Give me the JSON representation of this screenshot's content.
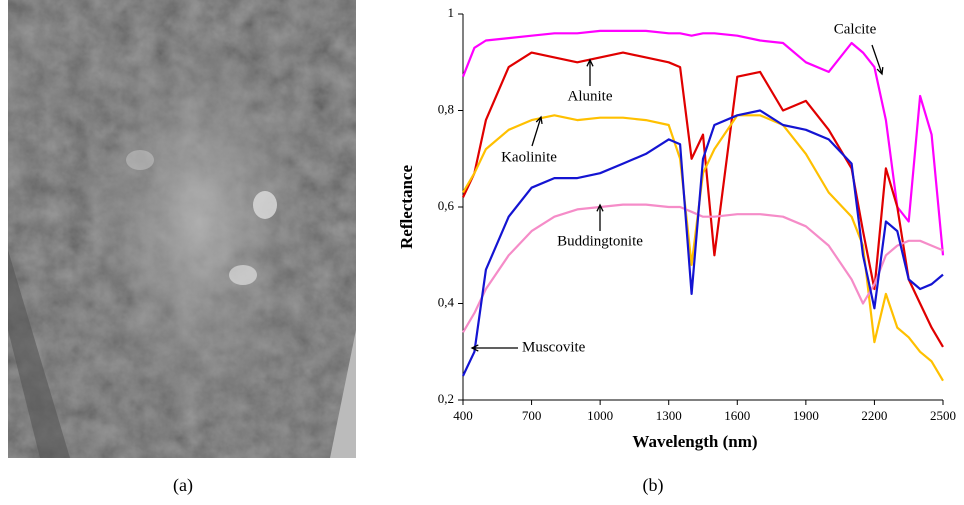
{
  "chart_data": {
    "type": "line",
    "xlabel": "Wavelength (nm)",
    "ylabel": "Reflectance",
    "x": [
      400,
      450,
      500,
      600,
      700,
      800,
      900,
      1000,
      1100,
      1200,
      1300,
      1350,
      1400,
      1450,
      1500,
      1600,
      1700,
      1800,
      1900,
      2000,
      2100,
      2150,
      2200,
      2250,
      2300,
      2350,
      2400,
      2450,
      2500
    ],
    "series": [
      {
        "name": "Calcite",
        "color": "#ff00ff",
        "values": [
          0.87,
          0.93,
          0.945,
          0.95,
          0.955,
          0.96,
          0.96,
          0.965,
          0.965,
          0.965,
          0.96,
          0.96,
          0.955,
          0.96,
          0.96,
          0.955,
          0.945,
          0.94,
          0.9,
          0.88,
          0.94,
          0.92,
          0.89,
          0.78,
          0.6,
          0.57,
          0.83,
          0.75,
          0.5
        ]
      },
      {
        "name": "Alunite",
        "color": "#e00000",
        "values": [
          0.62,
          0.67,
          0.78,
          0.89,
          0.92,
          0.91,
          0.9,
          0.91,
          0.92,
          0.91,
          0.9,
          0.89,
          0.7,
          0.75,
          0.5,
          0.87,
          0.88,
          0.8,
          0.82,
          0.76,
          0.68,
          0.55,
          0.43,
          0.68,
          0.6,
          0.45,
          0.4,
          0.35,
          0.31
        ]
      },
      {
        "name": "Kaolinite",
        "color": "#ffc000",
        "values": [
          0.63,
          0.67,
          0.72,
          0.76,
          0.78,
          0.79,
          0.78,
          0.785,
          0.785,
          0.78,
          0.77,
          0.7,
          0.48,
          0.67,
          0.72,
          0.79,
          0.79,
          0.77,
          0.71,
          0.63,
          0.58,
          0.52,
          0.32,
          0.42,
          0.35,
          0.33,
          0.3,
          0.28,
          0.24
        ]
      },
      {
        "name": "Buddingtonite",
        "color": "#f58cc8",
        "values": [
          0.34,
          0.38,
          0.43,
          0.5,
          0.55,
          0.58,
          0.595,
          0.6,
          0.605,
          0.605,
          0.6,
          0.6,
          0.59,
          0.58,
          0.58,
          0.585,
          0.585,
          0.58,
          0.56,
          0.52,
          0.45,
          0.4,
          0.44,
          0.5,
          0.52,
          0.53,
          0.53,
          0.52,
          0.51
        ]
      },
      {
        "name": "Muscovite",
        "color": "#1414d2",
        "values": [
          0.25,
          0.3,
          0.47,
          0.58,
          0.64,
          0.66,
          0.66,
          0.67,
          0.69,
          0.71,
          0.74,
          0.73,
          0.42,
          0.7,
          0.77,
          0.79,
          0.8,
          0.77,
          0.76,
          0.74,
          0.69,
          0.5,
          0.39,
          0.57,
          0.55,
          0.45,
          0.43,
          0.44,
          0.46
        ]
      }
    ],
    "xlim": [
      400,
      2500
    ],
    "xticks": [
      400,
      700,
      1000,
      1300,
      1600,
      1900,
      2200,
      2500
    ],
    "ylim": [
      0.2,
      1
    ],
    "yticks": [
      {
        "value": 0.2,
        "label": "0,2"
      },
      {
        "value": 0.4,
        "label": "0,4"
      },
      {
        "value": 0.6,
        "label": "0,6"
      },
      {
        "value": 0.8,
        "label": "0,8"
      },
      1
    ],
    "grid": false
  },
  "captions": [
    "(a)",
    "(b)"
  ]
}
